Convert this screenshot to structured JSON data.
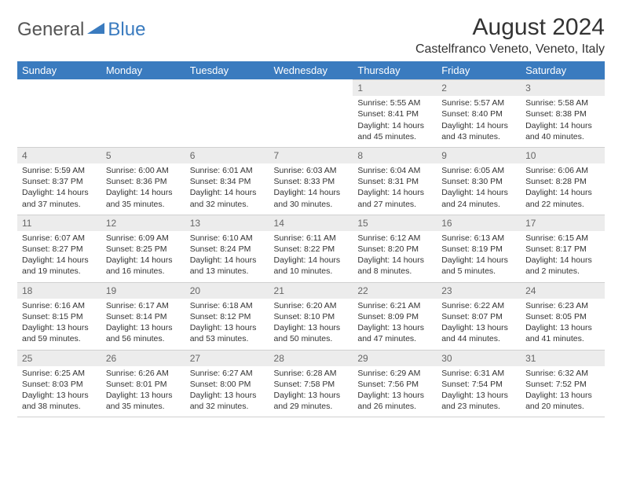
{
  "brand": {
    "text1": "General",
    "text2": "Blue"
  },
  "title": "August 2024",
  "location": "Castelfranco Veneto, Veneto, Italy",
  "colors": {
    "header_bg": "#3a7bbf",
    "header_text": "#ffffff",
    "daynum_bg": "#ececec",
    "daynum_text": "#666666",
    "body_text": "#333333",
    "border": "#d0d0d0",
    "page_bg": "#ffffff"
  },
  "typography": {
    "title_fontsize": 30,
    "location_fontsize": 16,
    "weekday_fontsize": 13,
    "daynum_fontsize": 12,
    "cell_fontsize": 10.5
  },
  "weekdays": [
    "Sunday",
    "Monday",
    "Tuesday",
    "Wednesday",
    "Thursday",
    "Friday",
    "Saturday"
  ],
  "weeks": [
    [
      {
        "n": "",
        "sr": "",
        "ss": "",
        "dl": ""
      },
      {
        "n": "",
        "sr": "",
        "ss": "",
        "dl": ""
      },
      {
        "n": "",
        "sr": "",
        "ss": "",
        "dl": ""
      },
      {
        "n": "",
        "sr": "",
        "ss": "",
        "dl": ""
      },
      {
        "n": "1",
        "sr": "Sunrise: 5:55 AM",
        "ss": "Sunset: 8:41 PM",
        "dl": "Daylight: 14 hours and 45 minutes."
      },
      {
        "n": "2",
        "sr": "Sunrise: 5:57 AM",
        "ss": "Sunset: 8:40 PM",
        "dl": "Daylight: 14 hours and 43 minutes."
      },
      {
        "n": "3",
        "sr": "Sunrise: 5:58 AM",
        "ss": "Sunset: 8:38 PM",
        "dl": "Daylight: 14 hours and 40 minutes."
      }
    ],
    [
      {
        "n": "4",
        "sr": "Sunrise: 5:59 AM",
        "ss": "Sunset: 8:37 PM",
        "dl": "Daylight: 14 hours and 37 minutes."
      },
      {
        "n": "5",
        "sr": "Sunrise: 6:00 AM",
        "ss": "Sunset: 8:36 PM",
        "dl": "Daylight: 14 hours and 35 minutes."
      },
      {
        "n": "6",
        "sr": "Sunrise: 6:01 AM",
        "ss": "Sunset: 8:34 PM",
        "dl": "Daylight: 14 hours and 32 minutes."
      },
      {
        "n": "7",
        "sr": "Sunrise: 6:03 AM",
        "ss": "Sunset: 8:33 PM",
        "dl": "Daylight: 14 hours and 30 minutes."
      },
      {
        "n": "8",
        "sr": "Sunrise: 6:04 AM",
        "ss": "Sunset: 8:31 PM",
        "dl": "Daylight: 14 hours and 27 minutes."
      },
      {
        "n": "9",
        "sr": "Sunrise: 6:05 AM",
        "ss": "Sunset: 8:30 PM",
        "dl": "Daylight: 14 hours and 24 minutes."
      },
      {
        "n": "10",
        "sr": "Sunrise: 6:06 AM",
        "ss": "Sunset: 8:28 PM",
        "dl": "Daylight: 14 hours and 22 minutes."
      }
    ],
    [
      {
        "n": "11",
        "sr": "Sunrise: 6:07 AM",
        "ss": "Sunset: 8:27 PM",
        "dl": "Daylight: 14 hours and 19 minutes."
      },
      {
        "n": "12",
        "sr": "Sunrise: 6:09 AM",
        "ss": "Sunset: 8:25 PM",
        "dl": "Daylight: 14 hours and 16 minutes."
      },
      {
        "n": "13",
        "sr": "Sunrise: 6:10 AM",
        "ss": "Sunset: 8:24 PM",
        "dl": "Daylight: 14 hours and 13 minutes."
      },
      {
        "n": "14",
        "sr": "Sunrise: 6:11 AM",
        "ss": "Sunset: 8:22 PM",
        "dl": "Daylight: 14 hours and 10 minutes."
      },
      {
        "n": "15",
        "sr": "Sunrise: 6:12 AM",
        "ss": "Sunset: 8:20 PM",
        "dl": "Daylight: 14 hours and 8 minutes."
      },
      {
        "n": "16",
        "sr": "Sunrise: 6:13 AM",
        "ss": "Sunset: 8:19 PM",
        "dl": "Daylight: 14 hours and 5 minutes."
      },
      {
        "n": "17",
        "sr": "Sunrise: 6:15 AM",
        "ss": "Sunset: 8:17 PM",
        "dl": "Daylight: 14 hours and 2 minutes."
      }
    ],
    [
      {
        "n": "18",
        "sr": "Sunrise: 6:16 AM",
        "ss": "Sunset: 8:15 PM",
        "dl": "Daylight: 13 hours and 59 minutes."
      },
      {
        "n": "19",
        "sr": "Sunrise: 6:17 AM",
        "ss": "Sunset: 8:14 PM",
        "dl": "Daylight: 13 hours and 56 minutes."
      },
      {
        "n": "20",
        "sr": "Sunrise: 6:18 AM",
        "ss": "Sunset: 8:12 PM",
        "dl": "Daylight: 13 hours and 53 minutes."
      },
      {
        "n": "21",
        "sr": "Sunrise: 6:20 AM",
        "ss": "Sunset: 8:10 PM",
        "dl": "Daylight: 13 hours and 50 minutes."
      },
      {
        "n": "22",
        "sr": "Sunrise: 6:21 AM",
        "ss": "Sunset: 8:09 PM",
        "dl": "Daylight: 13 hours and 47 minutes."
      },
      {
        "n": "23",
        "sr": "Sunrise: 6:22 AM",
        "ss": "Sunset: 8:07 PM",
        "dl": "Daylight: 13 hours and 44 minutes."
      },
      {
        "n": "24",
        "sr": "Sunrise: 6:23 AM",
        "ss": "Sunset: 8:05 PM",
        "dl": "Daylight: 13 hours and 41 minutes."
      }
    ],
    [
      {
        "n": "25",
        "sr": "Sunrise: 6:25 AM",
        "ss": "Sunset: 8:03 PM",
        "dl": "Daylight: 13 hours and 38 minutes."
      },
      {
        "n": "26",
        "sr": "Sunrise: 6:26 AM",
        "ss": "Sunset: 8:01 PM",
        "dl": "Daylight: 13 hours and 35 minutes."
      },
      {
        "n": "27",
        "sr": "Sunrise: 6:27 AM",
        "ss": "Sunset: 8:00 PM",
        "dl": "Daylight: 13 hours and 32 minutes."
      },
      {
        "n": "28",
        "sr": "Sunrise: 6:28 AM",
        "ss": "Sunset: 7:58 PM",
        "dl": "Daylight: 13 hours and 29 minutes."
      },
      {
        "n": "29",
        "sr": "Sunrise: 6:29 AM",
        "ss": "Sunset: 7:56 PM",
        "dl": "Daylight: 13 hours and 26 minutes."
      },
      {
        "n": "30",
        "sr": "Sunrise: 6:31 AM",
        "ss": "Sunset: 7:54 PM",
        "dl": "Daylight: 13 hours and 23 minutes."
      },
      {
        "n": "31",
        "sr": "Sunrise: 6:32 AM",
        "ss": "Sunset: 7:52 PM",
        "dl": "Daylight: 13 hours and 20 minutes."
      }
    ]
  ]
}
